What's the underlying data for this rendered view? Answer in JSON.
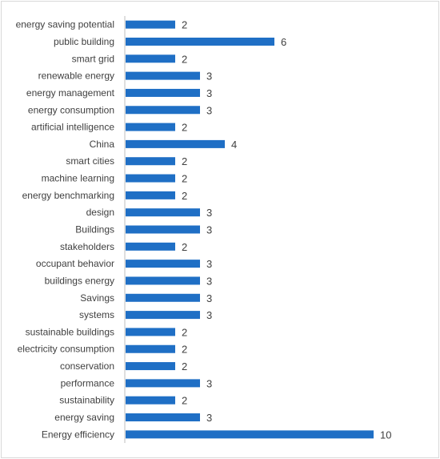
{
  "chart_data": {
    "type": "bar",
    "orientation": "horizontal",
    "categories": [
      "energy saving potential",
      "public building",
      "smart grid",
      "renewable energy",
      "energy management",
      "energy consumption",
      "artificial intelligence",
      "China",
      "smart cities",
      "machine learning",
      "energy benchmarking",
      "design",
      "Buildings",
      "stakeholders",
      "occupant behavior",
      "buildings energy",
      "Savings",
      "systems",
      "sustainable buildings",
      "electricity consumption",
      "conservation",
      "performance",
      "sustainability",
      "energy saving",
      "Energy efficiency"
    ],
    "values": [
      2,
      6,
      2,
      3,
      3,
      3,
      2,
      4,
      2,
      2,
      2,
      3,
      3,
      2,
      3,
      3,
      3,
      3,
      2,
      2,
      2,
      3,
      2,
      3,
      10
    ],
    "xlim": [
      0,
      10
    ],
    "data_labels": true,
    "grid": false,
    "legend": "none",
    "bar_color": "#1f6fc5"
  }
}
